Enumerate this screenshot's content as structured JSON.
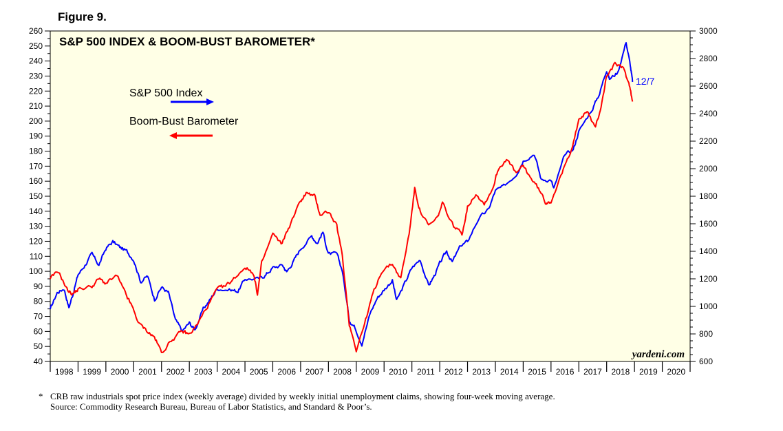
{
  "figure_label": "Figure 9.",
  "footnote": {
    "marker": "*",
    "line1": "CRB raw industrials spot price index (weekly average) divided by weekly initial unemployment claims, showing four-week moving average.",
    "line2": "Source: Commodity Research Bureau, Bureau of Labor Statistics, and Standard & Poor’s."
  },
  "credit": "yardeni.com",
  "end_label": "12/7",
  "colors": {
    "background": "#ffffe6",
    "sp500": "#0000ff",
    "bbb": "#ff0000"
  },
  "chart_data": {
    "type": "line",
    "title": "S&P 500 INDEX & BOOM-BUST BAROMETER*",
    "x_labels": [
      "1998",
      "1999",
      "2000",
      "2001",
      "2002",
      "2003",
      "2004",
      "2005",
      "2006",
      "2007",
      "2008",
      "2009",
      "2010",
      "2011",
      "2012",
      "2013",
      "2014",
      "2015",
      "2016",
      "2017",
      "2018",
      "2019",
      "2020"
    ],
    "xlim": [
      1998,
      2021
    ],
    "y_left": {
      "min": 40,
      "max": 260,
      "step": 10,
      "ticks": [
        40,
        50,
        60,
        70,
        80,
        90,
        100,
        110,
        120,
        130,
        140,
        150,
        160,
        170,
        180,
        190,
        200,
        210,
        220,
        230,
        240,
        250,
        260
      ]
    },
    "y_right": {
      "min": 600,
      "max": 3000,
      "step": 200,
      "ticks": [
        600,
        800,
        1000,
        1200,
        1400,
        1600,
        1800,
        2000,
        2200,
        2400,
        2600,
        2800,
        3000
      ]
    },
    "series": [
      {
        "name": "S&P 500 Index",
        "axis": "right",
        "legend_arrow": "right",
        "points": [
          [
            1998.0,
            980
          ],
          [
            1998.25,
            1100
          ],
          [
            1998.5,
            1130
          ],
          [
            1998.67,
            990
          ],
          [
            1998.83,
            1100
          ],
          [
            1999.0,
            1230
          ],
          [
            1999.25,
            1300
          ],
          [
            1999.5,
            1380
          ],
          [
            1999.75,
            1300
          ],
          [
            2000.0,
            1420
          ],
          [
            2000.25,
            1470
          ],
          [
            2000.5,
            1430
          ],
          [
            2000.75,
            1400
          ],
          [
            2001.0,
            1340
          ],
          [
            2001.25,
            1180
          ],
          [
            2001.5,
            1220
          ],
          [
            2001.75,
            1050
          ],
          [
            2002.0,
            1140
          ],
          [
            2002.25,
            1100
          ],
          [
            2002.5,
            900
          ],
          [
            2002.75,
            820
          ],
          [
            2003.0,
            880
          ],
          [
            2003.2,
            830
          ],
          [
            2003.5,
            980
          ],
          [
            2003.75,
            1050
          ],
          [
            2004.0,
            1130
          ],
          [
            2004.5,
            1120
          ],
          [
            2004.75,
            1110
          ],
          [
            2005.0,
            1200
          ],
          [
            2005.5,
            1200
          ],
          [
            2005.75,
            1230
          ],
          [
            2006.0,
            1280
          ],
          [
            2006.35,
            1300
          ],
          [
            2006.5,
            1250
          ],
          [
            2006.75,
            1330
          ],
          [
            2007.0,
            1420
          ],
          [
            2007.4,
            1510
          ],
          [
            2007.6,
            1460
          ],
          [
            2007.8,
            1540
          ],
          [
            2008.0,
            1380
          ],
          [
            2008.3,
            1380
          ],
          [
            2008.5,
            1260
          ],
          [
            2008.75,
            900
          ],
          [
            2008.95,
            850
          ],
          [
            2009.2,
            730
          ],
          [
            2009.5,
            950
          ],
          [
            2009.75,
            1060
          ],
          [
            2010.0,
            1120
          ],
          [
            2010.3,
            1190
          ],
          [
            2010.45,
            1040
          ],
          [
            2010.75,
            1170
          ],
          [
            2011.0,
            1280
          ],
          [
            2011.3,
            1340
          ],
          [
            2011.6,
            1150
          ],
          [
            2011.8,
            1220
          ],
          [
            2012.0,
            1310
          ],
          [
            2012.25,
            1400
          ],
          [
            2012.45,
            1320
          ],
          [
            2012.75,
            1440
          ],
          [
            2013.0,
            1470
          ],
          [
            2013.4,
            1640
          ],
          [
            2013.75,
            1700
          ],
          [
            2014.0,
            1840
          ],
          [
            2014.3,
            1870
          ],
          [
            2014.75,
            1960
          ],
          [
            2015.0,
            2060
          ],
          [
            2015.4,
            2110
          ],
          [
            2015.65,
            1920
          ],
          [
            2016.0,
            1920
          ],
          [
            2016.1,
            1850
          ],
          [
            2016.5,
            2100
          ],
          [
            2016.8,
            2140
          ],
          [
            2017.0,
            2270
          ],
          [
            2017.5,
            2440
          ],
          [
            2017.75,
            2550
          ],
          [
            2018.0,
            2720
          ],
          [
            2018.1,
            2650
          ],
          [
            2018.4,
            2700
          ],
          [
            2018.7,
            2920
          ],
          [
            2018.85,
            2750
          ],
          [
            2018.93,
            2630
          ]
        ]
      },
      {
        "name": "Boom-Bust Barometer",
        "axis": "left",
        "legend_arrow": "left",
        "points": [
          [
            1998.0,
            95
          ],
          [
            1998.3,
            100
          ],
          [
            1998.6,
            88
          ],
          [
            1998.8,
            85
          ],
          [
            1999.0,
            88
          ],
          [
            1999.5,
            90
          ],
          [
            1999.75,
            95
          ],
          [
            2000.0,
            92
          ],
          [
            2000.4,
            97
          ],
          [
            2000.7,
            85
          ],
          [
            2000.9,
            78
          ],
          [
            2001.2,
            65
          ],
          [
            2001.5,
            60
          ],
          [
            2001.75,
            56
          ],
          [
            2002.0,
            46
          ],
          [
            2002.4,
            55
          ],
          [
            2002.75,
            60
          ],
          [
            2003.0,
            58
          ],
          [
            2003.3,
            65
          ],
          [
            2003.6,
            75
          ],
          [
            2004.0,
            88
          ],
          [
            2004.3,
            90
          ],
          [
            2004.6,
            95
          ],
          [
            2005.0,
            103
          ],
          [
            2005.3,
            99
          ],
          [
            2005.45,
            85
          ],
          [
            2005.6,
            105
          ],
          [
            2006.0,
            125
          ],
          [
            2006.3,
            118
          ],
          [
            2006.6,
            130
          ],
          [
            2007.0,
            147
          ],
          [
            2007.2,
            152
          ],
          [
            2007.5,
            150
          ],
          [
            2007.7,
            138
          ],
          [
            2008.0,
            140
          ],
          [
            2008.3,
            130
          ],
          [
            2008.5,
            110
          ],
          [
            2008.75,
            65
          ],
          [
            2009.0,
            48
          ],
          [
            2009.3,
            65
          ],
          [
            2009.6,
            85
          ],
          [
            2009.9,
            100
          ],
          [
            2010.3,
            105
          ],
          [
            2010.6,
            95
          ],
          [
            2010.9,
            125
          ],
          [
            2011.1,
            155
          ],
          [
            2011.3,
            140
          ],
          [
            2011.6,
            130
          ],
          [
            2011.9,
            135
          ],
          [
            2012.1,
            145
          ],
          [
            2012.5,
            130
          ],
          [
            2012.8,
            125
          ],
          [
            2013.0,
            143
          ],
          [
            2013.3,
            152
          ],
          [
            2013.6,
            145
          ],
          [
            2013.9,
            155
          ],
          [
            2014.1,
            168
          ],
          [
            2014.4,
            175
          ],
          [
            2014.75,
            165
          ],
          [
            2015.0,
            170
          ],
          [
            2015.25,
            163
          ],
          [
            2015.55,
            155
          ],
          [
            2015.8,
            146
          ],
          [
            2016.0,
            147
          ],
          [
            2016.4,
            165
          ],
          [
            2016.7,
            180
          ],
          [
            2017.0,
            200
          ],
          [
            2017.3,
            207
          ],
          [
            2017.6,
            195
          ],
          [
            2017.8,
            210
          ],
          [
            2018.0,
            230
          ],
          [
            2018.3,
            238
          ],
          [
            2018.6,
            235
          ],
          [
            2018.8,
            225
          ],
          [
            2018.93,
            213
          ]
        ]
      }
    ]
  }
}
